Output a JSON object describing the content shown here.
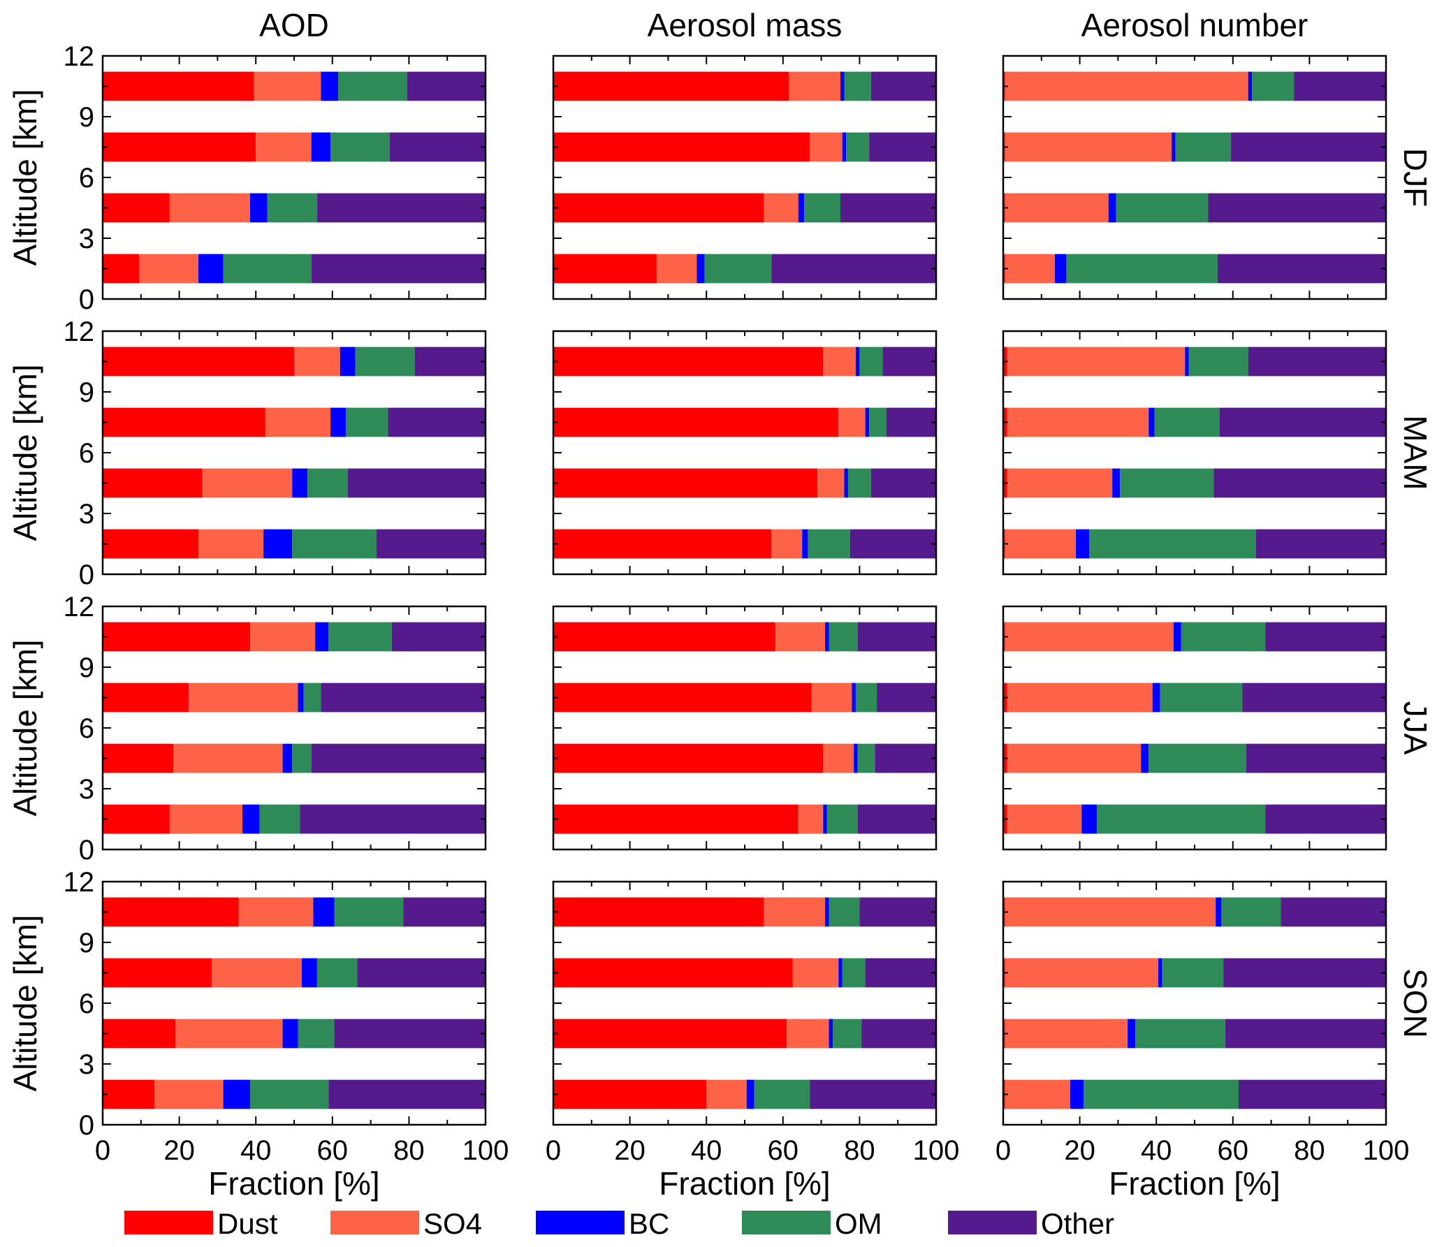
{
  "chart_data": {
    "type": "bar",
    "orientation": "horizontal-stacked",
    "column_titles": [
      "AOD",
      "Aerosol mass",
      "Aerosol number"
    ],
    "row_labels": [
      "DJF",
      "MAM",
      "JJA",
      "SON"
    ],
    "xlabel": "Fraction [%]",
    "ylabel": "Altitude [km]",
    "xlim": [
      0,
      100
    ],
    "ylim": [
      0,
      12
    ],
    "xticks": [
      0,
      20,
      40,
      60,
      80,
      100
    ],
    "yticks": [
      0,
      3,
      6,
      9,
      12
    ],
    "bar_altitudes": [
      1.5,
      4.5,
      7.5,
      10.5
    ],
    "grid": false,
    "legend_position": "bottom",
    "components": [
      {
        "name": "Dust",
        "color": "#ff0000"
      },
      {
        "name": "SO4",
        "color": "#ff6347"
      },
      {
        "name": "BC",
        "color": "#0000ff"
      },
      {
        "name": "OM",
        "color": "#2e8b57"
      },
      {
        "name": "Other",
        "color": "#551a8b"
      }
    ],
    "panels": {
      "DJF": {
        "AOD": [
          [
            9.5,
            15.5,
            6.5,
            23.0,
            45.5
          ],
          [
            17.5,
            21.0,
            4.5,
            13.0,
            44.0
          ],
          [
            40.0,
            14.5,
            5.0,
            15.5,
            25.0
          ],
          [
            39.5,
            17.5,
            4.5,
            18.0,
            20.5
          ]
        ],
        "Aerosol mass": [
          [
            27.0,
            10.5,
            2.0,
            17.5,
            43.0
          ],
          [
            55.0,
            9.0,
            1.5,
            9.5,
            25.0
          ],
          [
            67.0,
            8.5,
            1.0,
            6.0,
            17.5
          ],
          [
            61.5,
            13.5,
            1.0,
            7.0,
            17.0
          ]
        ],
        "Aerosol number": [
          [
            0.5,
            13.0,
            3.0,
            39.5,
            44.0
          ],
          [
            0.5,
            27.0,
            2.0,
            24.0,
            46.5
          ],
          [
            0.5,
            43.5,
            1.0,
            14.5,
            40.5
          ],
          [
            0.5,
            63.5,
            1.0,
            11.0,
            24.0
          ]
        ]
      },
      "MAM": {
        "AOD": [
          [
            25.0,
            17.0,
            7.5,
            22.0,
            28.5
          ],
          [
            26.0,
            23.5,
            4.0,
            10.5,
            36.0
          ],
          [
            42.5,
            17.0,
            4.0,
            11.0,
            25.5
          ],
          [
            50.0,
            12.0,
            4.0,
            15.5,
            18.5
          ]
        ],
        "Aerosol mass": [
          [
            57.0,
            8.0,
            1.5,
            11.0,
            22.5
          ],
          [
            69.0,
            7.0,
            1.0,
            6.0,
            17.0
          ],
          [
            74.5,
            7.0,
            1.0,
            4.5,
            13.0
          ],
          [
            70.5,
            8.5,
            1.0,
            6.0,
            14.0
          ]
        ],
        "Aerosol number": [
          [
            0.5,
            18.5,
            3.5,
            43.5,
            34.0
          ],
          [
            1.0,
            27.5,
            2.0,
            24.5,
            45.0
          ],
          [
            1.0,
            37.0,
            1.5,
            17.0,
            43.5
          ],
          [
            1.0,
            46.5,
            1.0,
            15.5,
            36.0
          ]
        ]
      },
      "JJA": {
        "AOD": [
          [
            17.5,
            19.0,
            4.5,
            10.5,
            48.5
          ],
          [
            18.5,
            28.5,
            2.5,
            5.0,
            45.5
          ],
          [
            22.5,
            28.5,
            1.5,
            4.5,
            43.0
          ],
          [
            38.5,
            17.0,
            3.5,
            16.5,
            24.5
          ]
        ],
        "Aerosol mass": [
          [
            64.0,
            6.5,
            1.0,
            8.0,
            20.5
          ],
          [
            70.5,
            8.0,
            1.0,
            4.5,
            16.0
          ],
          [
            67.5,
            10.5,
            1.0,
            5.5,
            15.5
          ],
          [
            58.0,
            13.0,
            1.0,
            7.5,
            20.5
          ]
        ],
        "Aerosol number": [
          [
            1.0,
            19.5,
            4.0,
            44.0,
            31.5
          ],
          [
            1.0,
            35.0,
            2.0,
            25.5,
            36.5
          ],
          [
            1.0,
            38.0,
            2.0,
            21.5,
            37.5
          ],
          [
            0.5,
            44.0,
            2.0,
            22.0,
            31.5
          ]
        ]
      },
      "SON": {
        "AOD": [
          [
            13.5,
            18.0,
            7.0,
            20.5,
            41.0
          ],
          [
            19.0,
            28.0,
            4.0,
            9.5,
            39.5
          ],
          [
            28.5,
            23.5,
            4.0,
            10.5,
            33.5
          ],
          [
            35.5,
            19.5,
            5.5,
            18.0,
            21.5
          ]
        ],
        "Aerosol mass": [
          [
            40.0,
            10.5,
            2.0,
            14.5,
            33.0
          ],
          [
            61.0,
            11.0,
            1.0,
            7.5,
            19.5
          ],
          [
            62.5,
            12.0,
            1.0,
            6.0,
            18.5
          ],
          [
            55.0,
            16.0,
            1.0,
            8.0,
            20.0
          ]
        ],
        "Aerosol number": [
          [
            0.5,
            17.0,
            3.5,
            40.5,
            38.5
          ],
          [
            0.5,
            32.0,
            2.0,
            23.5,
            42.0
          ],
          [
            0.5,
            40.0,
            1.0,
            16.0,
            42.5
          ],
          [
            0.5,
            55.0,
            1.5,
            15.5,
            27.5
          ]
        ]
      }
    }
  }
}
